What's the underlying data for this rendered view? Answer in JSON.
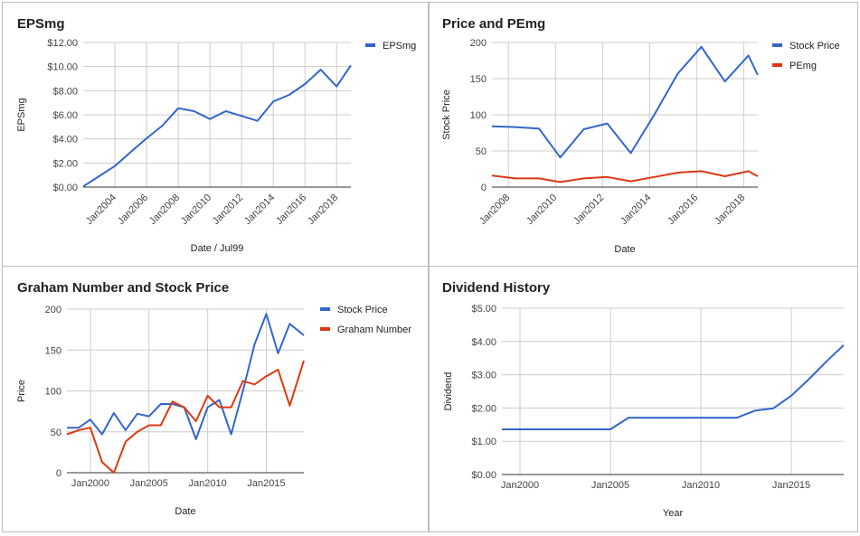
{
  "chart_data": [
    {
      "id": "eps",
      "type": "line",
      "title": "EPSmg",
      "xlabel": "Date / Jul99",
      "ylabel": "EPSmg",
      "ylim": [
        0,
        12
      ],
      "y_ticks": [
        "$0.00",
        "$2.00",
        "$4.00",
        "$6.00",
        "$8.00",
        "$10.00",
        "$12.00"
      ],
      "x_ticks": [
        {
          "label": "Jan2004",
          "x": 2004
        },
        {
          "label": "Jan2006",
          "x": 2006
        },
        {
          "label": "Jan2008",
          "x": 2008
        },
        {
          "label": "Jan2010",
          "x": 2010
        },
        {
          "label": "Jan2012",
          "x": 2012
        },
        {
          "label": "Jan2014",
          "x": 2014
        },
        {
          "label": "Jan2016",
          "x": 2016
        },
        {
          "label": "Jan2018",
          "x": 2018
        }
      ],
      "xlim": [
        2002,
        2018.9
      ],
      "grid": true,
      "legend": "right",
      "series": [
        {
          "name": "EPSmg",
          "color": "#3366cc",
          "x": [
            2002,
            2003,
            2004,
            2005,
            2006,
            2007,
            2008,
            2009,
            2010,
            2011,
            2012,
            2013,
            2014,
            2015,
            2016,
            2017,
            2018,
            2018.9
          ],
          "values": [
            0.05,
            0.9,
            1.75,
            2.9,
            4.05,
            5.1,
            6.55,
            6.3,
            5.65,
            6.3,
            5.9,
            5.5,
            7.1,
            7.65,
            8.55,
            9.75,
            8.35,
            10.1
          ]
        }
      ]
    },
    {
      "id": "price_pe",
      "type": "line",
      "title": "Price and PEmg",
      "xlabel": "Date",
      "ylabel": "Stock Price",
      "ylim": [
        0,
        200
      ],
      "y_ticks": [
        "0",
        "50",
        "100",
        "150",
        "200"
      ],
      "x_ticks": [
        {
          "label": "Jan2008",
          "x": 2008
        },
        {
          "label": "Jan2010",
          "x": 2010
        },
        {
          "label": "Jan2012",
          "x": 2012
        },
        {
          "label": "Jan2014",
          "x": 2014
        },
        {
          "label": "Jan2016",
          "x": 2016
        },
        {
          "label": "Jan2018",
          "x": 2018
        }
      ],
      "xlim": [
        2007.3,
        2018.6
      ],
      "grid": true,
      "legend": "right",
      "series": [
        {
          "name": "Stock Price",
          "color": "#3366cc",
          "x": [
            2007.3,
            2008.3,
            2009.3,
            2010.2,
            2011.2,
            2012.2,
            2013.2,
            2014.2,
            2015.2,
            2016.2,
            2017.2,
            2018.2,
            2018.6
          ],
          "values": [
            84,
            83,
            81,
            41,
            80,
            88,
            47,
            100,
            157,
            194,
            146,
            182,
            155
          ]
        },
        {
          "name": "PEmg",
          "color": "#dc3912",
          "x": [
            2007.3,
            2008.3,
            2009.3,
            2010.2,
            2011.2,
            2012.2,
            2013.2,
            2014.2,
            2015.2,
            2016.2,
            2017.2,
            2018.2,
            2018.6
          ],
          "values": [
            16,
            12,
            12,
            7,
            12,
            14,
            8,
            14,
            20,
            22,
            15,
            22,
            15
          ]
        }
      ]
    },
    {
      "id": "graham",
      "type": "line",
      "title": "Graham Number and Stock Price",
      "xlabel": "Date",
      "ylabel": "Price",
      "ylim": [
        0,
        200
      ],
      "y_ticks": [
        "0",
        "50",
        "100",
        "150",
        "200"
      ],
      "x_ticks": [
        {
          "label": "Jan2000",
          "x": 2000
        },
        {
          "label": "Jan2005",
          "x": 2005
        },
        {
          "label": "Jan2010",
          "x": 2010
        },
        {
          "label": "Jan2015",
          "x": 2015
        }
      ],
      "xlim": [
        1998,
        2018.2
      ],
      "grid": true,
      "legend": "right",
      "series": [
        {
          "name": "Stock Price",
          "color": "#3366cc",
          "x": [
            1998,
            1999,
            2000,
            2001,
            2002,
            2003,
            2004,
            2005,
            2006,
            2007,
            2008,
            2009,
            2010,
            2011,
            2012,
            2013,
            2014,
            2015,
            2016,
            2017,
            2018.2
          ],
          "values": [
            55,
            55,
            65,
            47,
            73,
            52,
            72,
            69,
            84,
            84,
            80,
            41,
            80,
            89,
            47,
            100,
            157,
            194,
            146,
            182,
            168
          ]
        },
        {
          "name": "Graham Number",
          "color": "#dc3912",
          "x": [
            1998,
            1999,
            2000,
            2001,
            2002,
            2003,
            2004,
            2005,
            2006,
            2007,
            2008,
            2009,
            2010,
            2011,
            2012,
            2013,
            2014,
            2015,
            2016,
            2017,
            2018.2
          ],
          "values": [
            47,
            52,
            55,
            13,
            0,
            38,
            50,
            58,
            58,
            87,
            80,
            63,
            94,
            80,
            80,
            112,
            108,
            118,
            126,
            82,
            137
          ]
        }
      ]
    },
    {
      "id": "dividend",
      "type": "line",
      "title": "Dividend History",
      "xlabel": "Year",
      "ylabel": "Dividend",
      "ylim": [
        0,
        5
      ],
      "y_ticks": [
        "$0.00",
        "$1.00",
        "$2.00",
        "$3.00",
        "$4.00",
        "$5.00"
      ],
      "x_ticks": [
        {
          "label": "Jan2000",
          "x": 2000
        },
        {
          "label": "Jan2005",
          "x": 2005
        },
        {
          "label": "Jan2010",
          "x": 2010
        },
        {
          "label": "Jan2015",
          "x": 2015
        }
      ],
      "xlim": [
        1999,
        2017.9
      ],
      "grid": true,
      "legend": "none",
      "series": [
        {
          "name": "",
          "color": "#3366cc",
          "x": [
            1999,
            2000,
            2001,
            2002,
            2003,
            2004,
            2005,
            2006,
            2007,
            2008,
            2009,
            2010,
            2011,
            2012,
            2013,
            2014,
            2015,
            2016,
            2017,
            2017.9
          ],
          "values": [
            1.36,
            1.36,
            1.36,
            1.36,
            1.36,
            1.36,
            1.36,
            1.71,
            1.71,
            1.71,
            1.71,
            1.71,
            1.71,
            1.71,
            1.92,
            1.99,
            2.37,
            2.88,
            3.43,
            3.89
          ]
        }
      ]
    }
  ]
}
